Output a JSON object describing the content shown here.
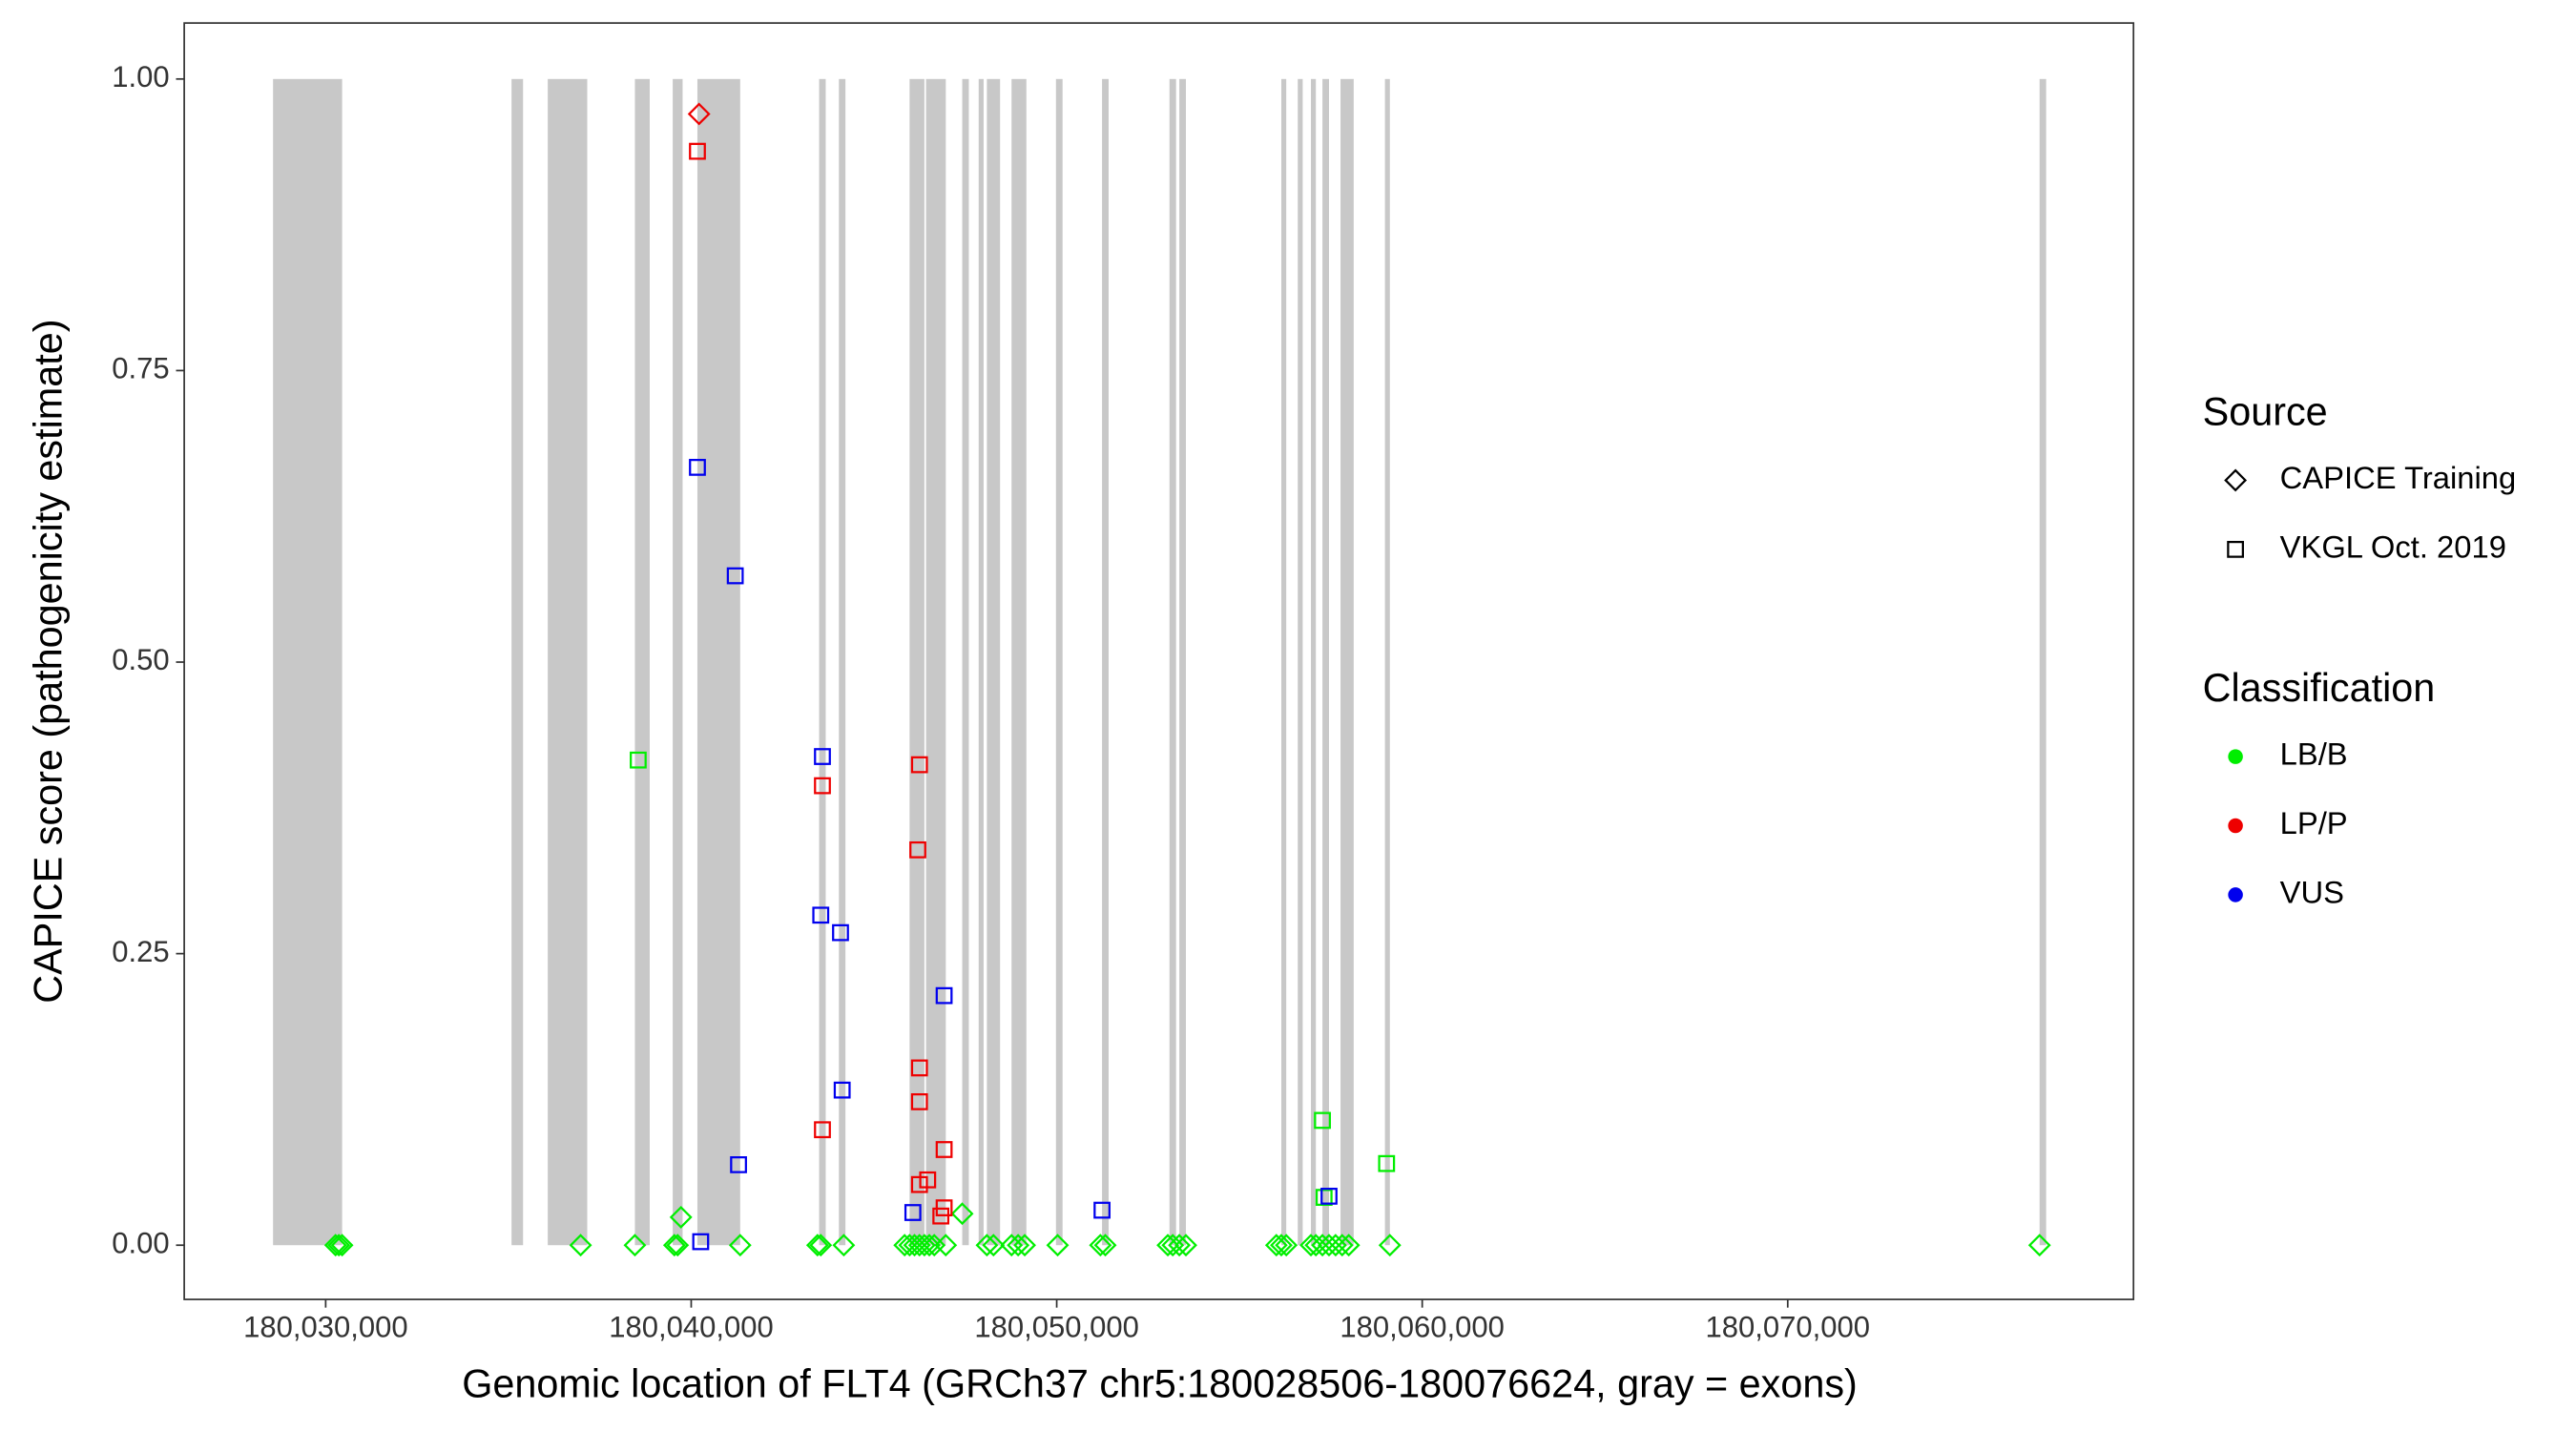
{
  "chart_data": {
    "type": "scatter",
    "xlabel": "Genomic location of FLT4 (GRCh37 chr5:180028506-180076624, gray = exons)",
    "ylabel": "CAPICE score (pathogenicity estimate)",
    "xlim": [
      180026130,
      180079460
    ],
    "ylim": [
      -0.0465,
      1.048
    ],
    "xticks": [
      {
        "value": 180030000,
        "label": "180,030,000"
      },
      {
        "value": 180040000,
        "label": "180,040,000"
      },
      {
        "value": 180050000,
        "label": "180,050,000"
      },
      {
        "value": 180060000,
        "label": "180,060,000"
      },
      {
        "value": 180070000,
        "label": "180,070,000"
      }
    ],
    "yticks": [
      {
        "value": 0,
        "label": "0.00"
      },
      {
        "value": 0.25,
        "label": "0.25"
      },
      {
        "value": 0.5,
        "label": "0.50"
      },
      {
        "value": 0.75,
        "label": "0.75"
      },
      {
        "value": 1,
        "label": "1.00"
      }
    ],
    "grid": false,
    "exon_color": "#c8c8c8",
    "exons": [
      [
        180028560,
        180030450
      ],
      [
        180035085,
        180035400
      ],
      [
        180036075,
        180037155
      ],
      [
        180038460,
        180038865
      ],
      [
        180039495,
        180039765
      ],
      [
        180040170,
        180041340
      ],
      [
        180043500,
        180043680
      ],
      [
        180044040,
        180044220
      ],
      [
        180045975,
        180046380
      ],
      [
        180046425,
        180046965
      ],
      [
        180047415,
        180047595
      ],
      [
        180047865,
        180048000
      ],
      [
        180048090,
        180048450
      ],
      [
        180048765,
        180049170
      ],
      [
        180049980,
        180050160
      ],
      [
        180051240,
        180051420
      ],
      [
        180053085,
        180053265
      ],
      [
        180053355,
        180053535
      ],
      [
        180056145,
        180056280
      ],
      [
        180056595,
        180056730
      ],
      [
        180056955,
        180057090
      ],
      [
        180057270,
        180057450
      ],
      [
        180057765,
        180058125
      ],
      [
        180058980,
        180059115
      ],
      [
        180076890,
        180077070
      ]
    ],
    "source_title": "Source",
    "sources": [
      {
        "name": "CAPICE Training",
        "shape": "diamond"
      },
      {
        "name": "VKGL Oct. 2019",
        "shape": "square"
      }
    ],
    "classification_title": "Classification",
    "classifications": [
      {
        "name": "LB/B",
        "color": "#00ee00"
      },
      {
        "name": "LP/P",
        "color": "#ee0000"
      },
      {
        "name": "VUS",
        "color": "#0000ee"
      }
    ],
    "legend": "right",
    "series": [
      {
        "source": "CAPICE Training",
        "classification": "LB/B",
        "x": [
          180030270,
          180030360,
          180030450,
          180036975,
          180038460,
          180039540,
          180039630,
          180041340,
          180043455,
          180043545,
          180044175,
          180045840,
          180045975,
          180046110,
          180046245,
          180046380,
          180046515,
          180046650,
          180046965,
          180047415,
          180048090,
          180048270,
          180048765,
          180048945,
          180049125,
          180050025,
          180051195,
          180051330,
          180053040,
          180053175,
          180053355,
          180053535,
          180056010,
          180056145,
          180056280,
          180056955,
          180057090,
          180057270,
          180057450,
          180057630,
          180057810,
          180057990,
          180059115,
          180076890,
          180039720
        ],
        "values": [
          0,
          0,
          0,
          0,
          0,
          0,
          0,
          0,
          0,
          0,
          0,
          0,
          0,
          0,
          0,
          0,
          0,
          0,
          0,
          0.027,
          0,
          0,
          0,
          0,
          0,
          0,
          0,
          0,
          0,
          0,
          0,
          0,
          0,
          0,
          0,
          0,
          0,
          0,
          0,
          0,
          0,
          0,
          0,
          0,
          0.024
        ]
      },
      {
        "source": "CAPICE Training",
        "classification": "LP/P",
        "x": [
          180040215
        ],
        "values": [
          0.97
        ]
      },
      {
        "source": "VKGL Oct. 2019",
        "classification": "LB/B",
        "x": [
          180038550,
          180057270,
          180059025,
          180057315
        ],
        "values": [
          0.416,
          0.107,
          0.07,
          0.041
        ]
      },
      {
        "source": "VKGL Oct. 2019",
        "classification": "LP/P",
        "x": [
          180040170,
          180043590,
          180046245,
          180046200,
          180046245,
          180046245,
          180043590,
          180046920,
          180046245,
          180046470,
          180046920,
          180046830
        ],
        "values": [
          0.938,
          0.394,
          0.412,
          0.339,
          0.152,
          0.123,
          0.099,
          0.082,
          0.052,
          0.056,
          0.032,
          0.025
        ]
      },
      {
        "source": "VKGL Oct. 2019",
        "classification": "VUS",
        "x": [
          180040170,
          180041205,
          180043590,
          180043545,
          180044085,
          180046920,
          180044130,
          180041295,
          180046065,
          180051240,
          180057450,
          180040260
        ],
        "values": [
          0.667,
          0.574,
          0.419,
          0.283,
          0.268,
          0.214,
          0.133,
          0.069,
          0.028,
          0.03,
          0.042,
          0.003
        ]
      }
    ]
  }
}
